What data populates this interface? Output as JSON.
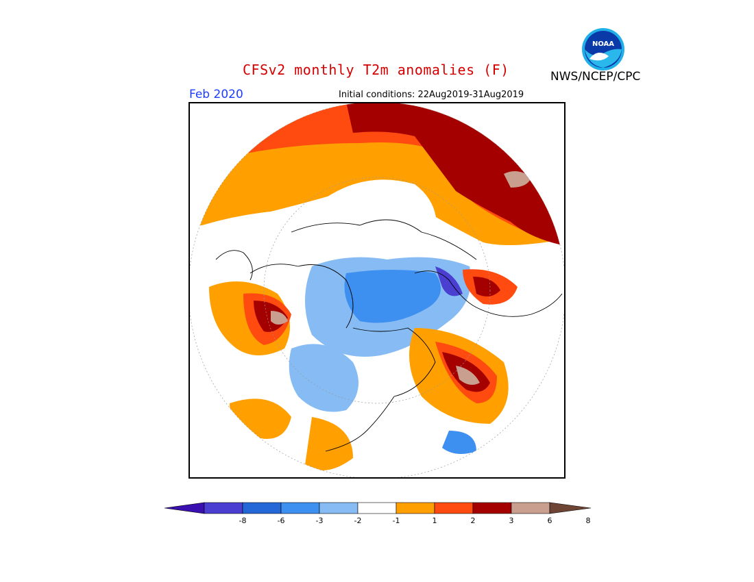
{
  "header": {
    "title": "CFSv2 monthly T2m anomalies (F)",
    "agency": "NWS/NCEP/CPC",
    "logo_text": "NOAA",
    "month": "Feb 2020",
    "initial_conditions": "Initial conditions: 22Aug2019-31Aug2019"
  },
  "colors": {
    "title": "#d40000",
    "month": "#1a3cff",
    "bins": [
      "#3a10b0",
      "#4a3fd0",
      "#2468d8",
      "#3d8ff0",
      "#86bbf4",
      "#ffffff",
      "#ffa000",
      "#ff4a10",
      "#a50000",
      "#c9a08f",
      "#6e4435"
    ]
  },
  "colorbar": {
    "labels": [
      "-8",
      "-6",
      "-3",
      "-2",
      "-1",
      "1",
      "2",
      "3",
      "6",
      "8"
    ]
  }
}
